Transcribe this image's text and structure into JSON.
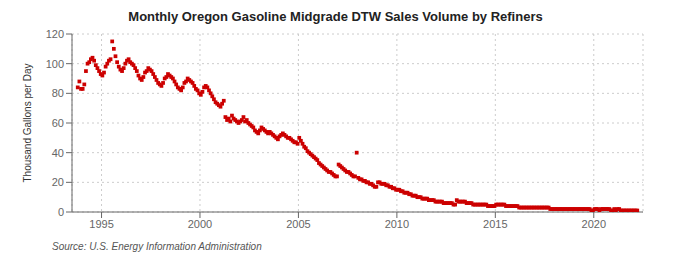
{
  "chart_data": {
    "type": "scatter",
    "title": "Monthly Oregon Gasoline Midgrade DTW Sales Volume by Refiners",
    "ylabel": "Thousand Gallons per Day",
    "source": "Source: U.S. Energy Information Administration",
    "color": "#cc0000",
    "marker": "square",
    "grid": true,
    "xlim": [
      1993.5,
      2022.5
    ],
    "xticks": [
      1995,
      2000,
      2005,
      2010,
      2015,
      2020
    ],
    "ylim": [
      0,
      120
    ],
    "yticks": [
      0,
      20,
      40,
      60,
      80,
      100,
      120
    ],
    "x": [
      1993.7916666666667,
      1993.875,
      1993.9583333333333,
      1994.0416666666667,
      1994.125,
      1994.2083333333333,
      1994.2916666666667,
      1994.375,
      1994.4583333333333,
      1994.5416666666667,
      1994.625,
      1994.7083333333333,
      1994.7916666666667,
      1994.875,
      1994.9583333333333,
      1995.0416666666667,
      1995.125,
      1995.2083333333333,
      1995.2916666666667,
      1995.375,
      1995.4583333333333,
      1995.5416666666667,
      1995.625,
      1995.7083333333333,
      1995.7916666666667,
      1995.875,
      1995.9583333333333,
      1996.0416666666667,
      1996.125,
      1996.2083333333333,
      1996.2916666666667,
      1996.375,
      1996.4583333333333,
      1996.5416666666667,
      1996.625,
      1996.7083333333333,
      1996.7916666666667,
      1996.875,
      1996.9583333333333,
      1997.0416666666667,
      1997.125,
      1997.2083333333333,
      1997.2916666666667,
      1997.375,
      1997.4583333333333,
      1997.5416666666667,
      1997.625,
      1997.7083333333333,
      1997.7916666666667,
      1997.875,
      1997.9583333333333,
      1998.0416666666667,
      1998.125,
      1998.2083333333333,
      1998.2916666666667,
      1998.375,
      1998.4583333333333,
      1998.5416666666667,
      1998.625,
      1998.7083333333333,
      1998.7916666666667,
      1998.875,
      1998.9583333333333,
      1999.0416666666667,
      1999.125,
      1999.2083333333333,
      1999.2916666666667,
      1999.375,
      1999.4583333333333,
      1999.5416666666667,
      1999.625,
      1999.7083333333333,
      1999.7916666666667,
      1999.875,
      1999.9583333333333,
      2000.0416666666667,
      2000.125,
      2000.2083333333333,
      2000.2916666666667,
      2000.375,
      2000.4583333333333,
      2000.5416666666667,
      2000.625,
      2000.7083333333333,
      2000.7916666666667,
      2000.875,
      2000.9583333333333,
      2001.0416666666667,
      2001.125,
      2001.2083333333333,
      2001.2916666666667,
      2001.375,
      2001.4583333333333,
      2001.5416666666667,
      2001.625,
      2001.7083333333333,
      2001.7916666666667,
      2001.875,
      2001.9583333333333,
      2002.0416666666667,
      2002.125,
      2002.2083333333333,
      2002.2916666666667,
      2002.375,
      2002.4583333333333,
      2002.5416666666667,
      2002.625,
      2002.7083333333333,
      2002.7916666666667,
      2002.875,
      2002.9583333333333,
      2003.0416666666667,
      2003.125,
      2003.2083333333333,
      2003.2916666666667,
      2003.375,
      2003.4583333333333,
      2003.5416666666667,
      2003.625,
      2003.7083333333333,
      2003.7916666666667,
      2003.875,
      2003.9583333333333,
      2004.0416666666667,
      2004.125,
      2004.2083333333333,
      2004.2916666666667,
      2004.375,
      2004.4583333333333,
      2004.5416666666667,
      2004.625,
      2004.7083333333333,
      2004.7916666666667,
      2004.875,
      2004.9583333333333,
      2005.0416666666667,
      2005.125,
      2005.2083333333333,
      2005.2916666666667,
      2005.375,
      2005.4583333333333,
      2005.5416666666667,
      2005.625,
      2005.7083333333333,
      2005.7916666666667,
      2005.875,
      2005.9583333333333,
      2006.0416666666667,
      2006.125,
      2006.2083333333333,
      2006.2916666666667,
      2006.375,
      2006.4583333333333,
      2006.5416666666667,
      2006.625,
      2006.7083333333333,
      2006.7916666666667,
      2006.875,
      2006.9583333333333,
      2007.0416666666667,
      2007.125,
      2007.2083333333333,
      2007.2916666666667,
      2007.375,
      2007.4583333333333,
      2007.5416666666667,
      2007.625,
      2007.7083333333333,
      2007.7916666666667,
      2007.875,
      2007.9583333333333,
      2008.0416666666667,
      2008.125,
      2008.2083333333333,
      2008.2916666666667,
      2008.375,
      2008.4583333333333,
      2008.5416666666667,
      2008.625,
      2008.7083333333333,
      2008.7916666666667,
      2008.875,
      2008.9583333333333,
      2009.0416666666667,
      2009.125,
      2009.2083333333333,
      2009.2916666666667,
      2009.375,
      2009.4583333333333,
      2009.5416666666667,
      2009.625,
      2009.7083333333333,
      2009.7916666666667,
      2009.875,
      2009.9583333333333,
      2010.0416666666667,
      2010.125,
      2010.2083333333333,
      2010.2916666666667,
      2010.375,
      2010.4583333333333,
      2010.5416666666667,
      2010.625,
      2010.7083333333333,
      2010.7916666666667,
      2010.875,
      2010.9583333333333,
      2011.0416666666667,
      2011.125,
      2011.2083333333333,
      2011.2916666666667,
      2011.375,
      2011.4583333333333,
      2011.5416666666667,
      2011.625,
      2011.7083333333333,
      2011.7916666666667,
      2011.875,
      2011.9583333333333,
      2012.0416666666667,
      2012.125,
      2012.2083333333333,
      2012.2916666666667,
      2012.375,
      2012.4583333333333,
      2012.5416666666667,
      2012.625,
      2012.7083333333333,
      2012.7916666666667,
      2012.875,
      2012.9583333333333,
      2013.0416666666667,
      2013.125,
      2013.2083333333333,
      2013.2916666666667,
      2013.375,
      2013.4583333333333,
      2013.5416666666667,
      2013.625,
      2013.7083333333333,
      2013.7916666666667,
      2013.875,
      2013.9583333333333,
      2014.0416666666667,
      2014.125,
      2014.2083333333333,
      2014.2916666666667,
      2014.375,
      2014.4583333333333,
      2014.5416666666667,
      2014.625,
      2014.7083333333333,
      2014.7916666666667,
      2014.875,
      2014.9583333333333,
      2015.0416666666667,
      2015.125,
      2015.2083333333333,
      2015.2916666666667,
      2015.375,
      2015.4583333333333,
      2015.5416666666667,
      2015.625,
      2015.7083333333333,
      2015.7916666666667,
      2015.875,
      2015.9583333333333,
      2016.0416666666667,
      2016.125,
      2016.2083333333333,
      2016.2916666666667,
      2016.375,
      2016.4583333333333,
      2016.5416666666667,
      2016.625,
      2016.7083333333333,
      2016.7916666666667,
      2016.875,
      2016.9583333333333,
      2017.0416666666667,
      2017.125,
      2017.2083333333333,
      2017.2916666666667,
      2017.375,
      2017.4583333333333,
      2017.5416666666667,
      2017.625,
      2017.7083333333333,
      2017.7916666666667,
      2017.875,
      2017.9583333333333,
      2018.0416666666667,
      2018.125,
      2018.2083333333333,
      2018.2916666666667,
      2018.375,
      2018.4583333333333,
      2018.5416666666667,
      2018.625,
      2018.7083333333333,
      2018.7916666666667,
      2018.875,
      2018.9583333333333,
      2019.0416666666667,
      2019.125,
      2019.2083333333333,
      2019.2916666666667,
      2019.375,
      2019.4583333333333,
      2019.5416666666667,
      2019.625,
      2019.7083333333333,
      2019.7916666666667,
      2019.875,
      2019.9583333333333,
      2020.0416666666667,
      2020.125,
      2020.2083333333333,
      2020.2916666666667,
      2020.375,
      2020.4583333333333,
      2020.5416666666667,
      2020.625,
      2020.7083333333333,
      2020.7916666666667,
      2020.875,
      2020.9583333333333,
      2021.0416666666667,
      2021.125,
      2021.2083333333333,
      2021.2916666666667,
      2021.375,
      2021.4583333333333,
      2021.5416666666667,
      2021.625,
      2021.7083333333333,
      2021.7916666666667,
      2021.875,
      2021.9583333333333,
      2022.0416666666667,
      2022.125,
      2022.2083333333333
    ],
    "values": [
      84,
      88,
      83,
      83,
      86,
      95,
      100,
      101,
      103,
      104,
      102,
      99,
      97,
      95,
      93,
      92,
      94,
      98,
      100,
      102,
      103,
      115,
      110,
      105,
      101,
      98,
      96,
      95,
      97,
      100,
      102,
      103,
      101,
      100,
      99,
      97,
      95,
      92,
      90,
      89,
      91,
      94,
      95,
      97,
      96,
      95,
      93,
      91,
      89,
      87,
      86,
      85,
      87,
      90,
      91,
      93,
      92,
      91,
      90,
      88,
      86,
      84,
      83,
      82,
      84,
      87,
      88,
      90,
      89,
      88,
      87,
      85,
      83,
      82,
      80,
      79,
      81,
      84,
      85,
      84,
      82,
      80,
      78,
      76,
      74,
      73,
      72,
      71,
      73,
      75,
      64,
      62,
      63,
      61,
      65,
      63,
      62,
      61,
      60,
      61,
      62,
      64,
      61,
      62,
      60,
      59,
      58,
      57,
      55,
      54,
      53,
      55,
      57,
      56,
      55,
      54,
      53,
      54,
      53,
      52,
      51,
      50,
      49,
      51,
      52,
      53,
      52,
      51,
      50,
      50,
      49,
      48,
      47,
      47,
      46,
      50,
      48,
      46,
      44,
      43,
      41,
      40,
      39,
      38,
      37,
      36,
      35,
      33,
      32,
      31,
      30,
      29,
      28,
      27,
      27,
      26,
      25,
      24,
      24,
      32,
      31,
      30,
      29,
      28,
      27,
      27,
      26,
      25,
      24,
      24,
      40,
      23,
      22,
      22,
      21,
      21,
      20,
      20,
      19,
      19,
      18,
      17,
      17,
      20,
      20,
      19,
      19,
      19,
      18,
      18,
      17,
      17,
      16,
      16,
      15,
      15,
      15,
      14,
      14,
      13,
      13,
      13,
      12,
      12,
      11,
      11,
      11,
      10,
      10,
      10,
      9,
      9,
      9,
      9,
      8,
      8,
      8,
      8,
      7,
      7,
      7,
      7,
      7,
      6,
      6,
      6,
      6,
      6,
      6,
      5,
      5,
      8,
      7,
      7,
      7,
      7,
      7,
      6,
      6,
      6,
      6,
      5,
      5,
      5,
      5,
      5,
      5,
      5,
      5,
      5,
      4,
      4,
      4,
      4,
      4,
      5,
      5,
      5,
      5,
      5,
      5,
      4,
      4,
      4,
      4,
      4,
      4,
      4,
      4,
      3,
      3,
      3,
      3,
      3,
      3,
      3,
      3,
      3,
      3,
      3,
      3,
      3,
      3,
      3,
      3,
      3,
      3,
      3,
      2,
      2,
      2,
      2,
      2,
      2,
      2,
      2,
      2,
      2,
      2,
      2,
      2,
      2,
      2,
      2,
      2,
      2,
      2,
      2,
      2,
      2,
      2,
      2,
      2,
      1,
      1,
      2,
      2,
      2,
      1,
      2,
      2,
      2,
      2,
      2,
      2,
      1,
      1,
      2,
      1,
      2,
      2,
      1,
      1,
      1,
      1,
      1,
      1,
      1,
      1,
      1,
      1,
      1
    ]
  }
}
